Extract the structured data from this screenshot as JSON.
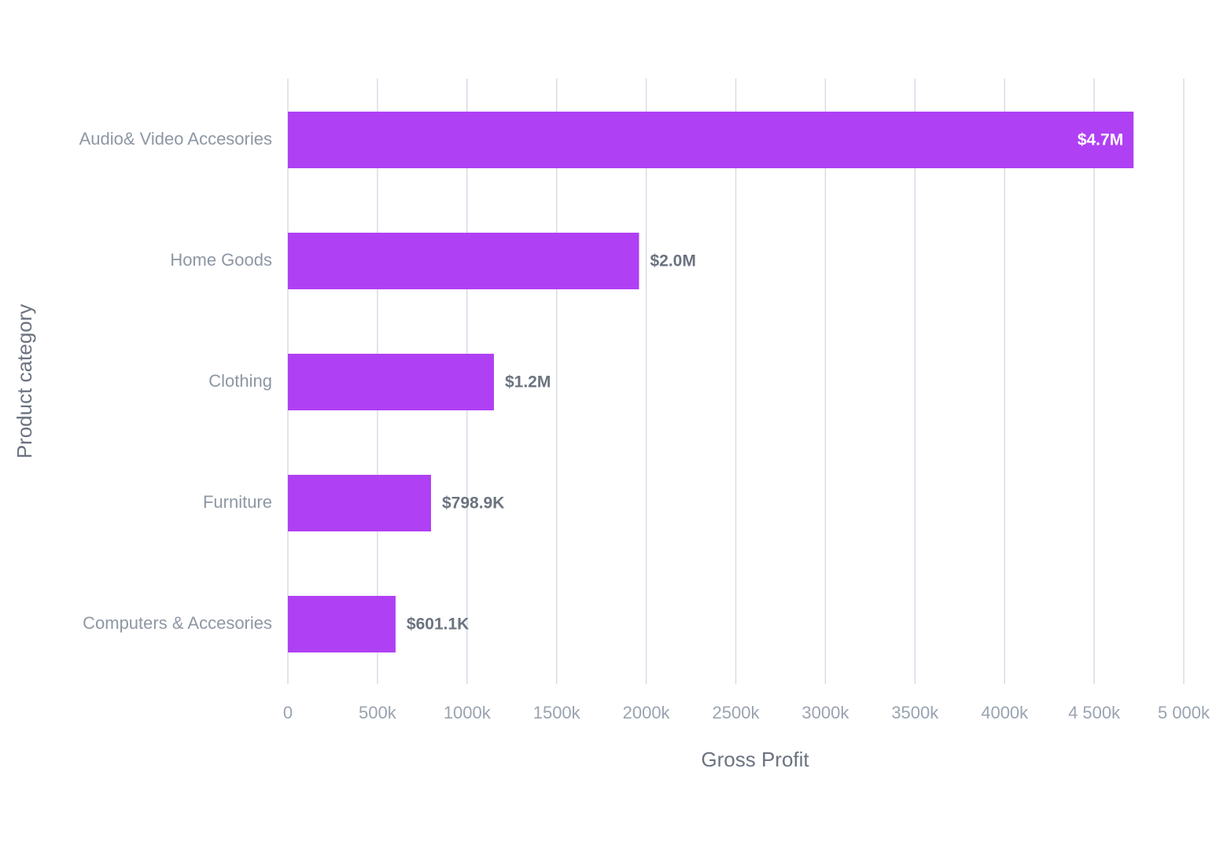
{
  "chart_data": {
    "type": "bar",
    "orientation": "horizontal",
    "x_label": "Gross Profit",
    "y_label": "Product category",
    "categories": [
      "Audio& Video Accesories",
      "Home Goods",
      "Clothing",
      "Furniture",
      "Computers & Accesories"
    ],
    "values": [
      4720000,
      1960000,
      1150000,
      798900,
      601100
    ],
    "value_labels": [
      "$4.7M",
      "$2.0M",
      "$1.2M",
      "$798.9K",
      "$601.1K"
    ],
    "color": "#b040f3",
    "xlim": [
      0,
      5000000
    ],
    "xticks": [
      0,
      {
        "value": 500000,
        "label": "500k"
      },
      {
        "value": 1000000,
        "label": "1000k"
      },
      {
        "value": 1500000,
        "label": "1500k"
      },
      {
        "value": 2000000,
        "label": "2000k"
      },
      {
        "value": 2500000,
        "label": "2500k"
      },
      {
        "value": 3000000,
        "label": "3000k"
      },
      {
        "value": 3500000,
        "label": "3500k"
      },
      {
        "value": 4000000,
        "label": "4000k"
      },
      {
        "value": 4500000,
        "label": "4 500k"
      },
      {
        "value": 5000000,
        "label": "5 000k"
      }
    ],
    "grid": true
  }
}
